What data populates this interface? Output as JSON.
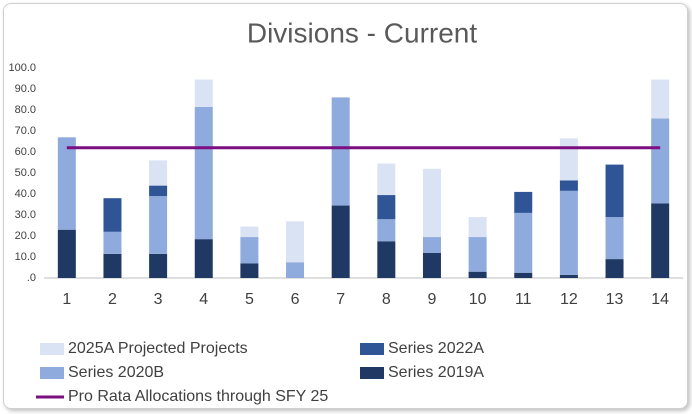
{
  "chart_data": {
    "type": "bar",
    "title": "Divisions - Current",
    "categories": [
      "1",
      "2",
      "3",
      "4",
      "5",
      "6",
      "7",
      "8",
      "9",
      "10",
      "11",
      "12",
      "13",
      "14"
    ],
    "stacked": true,
    "series": [
      {
        "name": "Series 2019A",
        "color": "#1f3864",
        "values": [
          23,
          11.5,
          11.5,
          18.5,
          7,
          0,
          34.5,
          17.5,
          12,
          3,
          2.5,
          1.5,
          9,
          35.5
        ]
      },
      {
        "name": "Series 2020B",
        "color": "#8faadc",
        "values": [
          44,
          10.5,
          27.5,
          63,
          12.5,
          7.5,
          51.5,
          10.5,
          7.5,
          16.5,
          28.5,
          40,
          20,
          40.5
        ]
      },
      {
        "name": "Series 2022A",
        "color": "#2f5597",
        "values": [
          0,
          16,
          5,
          0,
          0,
          0,
          0,
          11.5,
          0,
          0,
          10,
          5,
          25,
          0
        ]
      },
      {
        "name": "2025A Projected Projects",
        "color": "#dae3f3",
        "values": [
          0,
          0,
          12,
          13,
          5,
          19.5,
          0,
          15,
          32.5,
          9.5,
          0,
          20,
          0,
          18.5
        ]
      },
      {
        "name": "Pro Rata Allocations through SFY 25",
        "color": "#7b0f82",
        "type": "line",
        "values": [
          62,
          62,
          62,
          62,
          62,
          62,
          62,
          62,
          62,
          62,
          62,
          62,
          62,
          62
        ]
      }
    ],
    "ylim": [
      0,
      100
    ],
    "yticks": [
      {
        "value": 0,
        "label": ".0"
      },
      {
        "value": 10,
        "label": "10.0"
      },
      {
        "value": 20,
        "label": "20.0"
      },
      {
        "value": 30,
        "label": "30.0"
      },
      {
        "value": 40,
        "label": "40.0"
      },
      {
        "value": 50,
        "label": "50.0"
      },
      {
        "value": 60,
        "label": "60.0"
      },
      {
        "value": 70,
        "label": "70.0"
      },
      {
        "value": 80,
        "label": "80.0"
      },
      {
        "value": 90,
        "label": "90.0"
      },
      {
        "value": 100,
        "label": "100.0"
      }
    ],
    "grid": false
  }
}
